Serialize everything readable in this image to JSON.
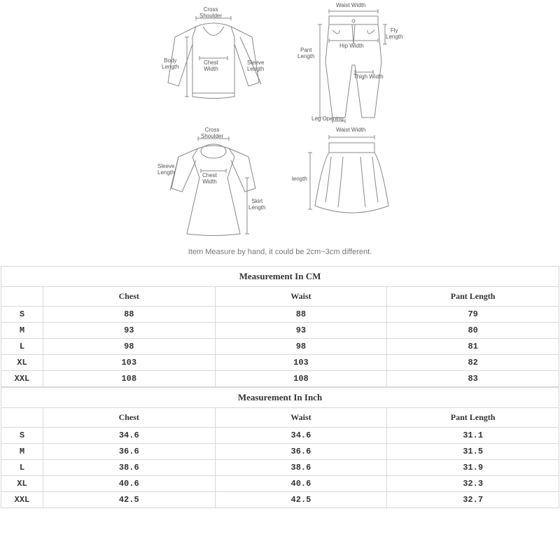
{
  "diagram": {
    "top_labels": {
      "cross_shoulder": "Cross\nShoulder",
      "body_length": "Body\nLength",
      "chest_width": "Chest\nWidth",
      "sleeve_length": "Sleeve\nLength"
    },
    "pants_labels": {
      "waist_width": "Waist Width",
      "pant_length": "Pant\nLength",
      "hip_width": "Hip Width",
      "fly_length": "Fly\nLength",
      "thigh_width": "Thigh Width",
      "leg_opening": "Leg Opening"
    },
    "dress_labels": {
      "cross_shoulder": "Cross\nShoulder",
      "sleeve_length": "Sleeve\nLength",
      "chest_width": "Chest\nWidth",
      "skirt_length": "Skirt\nLength"
    },
    "skirt_labels": {
      "waist_width": "Waist Width",
      "length": "length"
    },
    "note": "Item Measure by hand, it could be 2cm~3cm different.",
    "stroke": "#777777",
    "fill": "#ffffff"
  },
  "table_cm": {
    "title": "Measurement In CM",
    "columns": [
      "",
      "Chest",
      "Waist",
      "Pant Length"
    ],
    "rows": [
      [
        "S",
        "88",
        "88",
        "79"
      ],
      [
        "M",
        "93",
        "93",
        "80"
      ],
      [
        "L",
        "98",
        "98",
        "81"
      ],
      [
        "XL",
        "103",
        "103",
        "82"
      ],
      [
        "XXL",
        "108",
        "108",
        "83"
      ]
    ]
  },
  "table_inch": {
    "title": "Measurement In Inch",
    "columns": [
      "",
      "Chest",
      "Waist",
      "Pant Length"
    ],
    "rows": [
      [
        "S",
        "34.6",
        "34.6",
        "31.1"
      ],
      [
        "M",
        "36.6",
        "36.6",
        "31.5"
      ],
      [
        "L",
        "38.6",
        "38.6",
        "31.9"
      ],
      [
        "XL",
        "40.6",
        "40.6",
        "32.3"
      ],
      [
        "XXL",
        "42.5",
        "42.5",
        "32.7"
      ]
    ]
  },
  "colors": {
    "border": "#d8d8d8",
    "text": "#333333",
    "note": "#777777"
  }
}
